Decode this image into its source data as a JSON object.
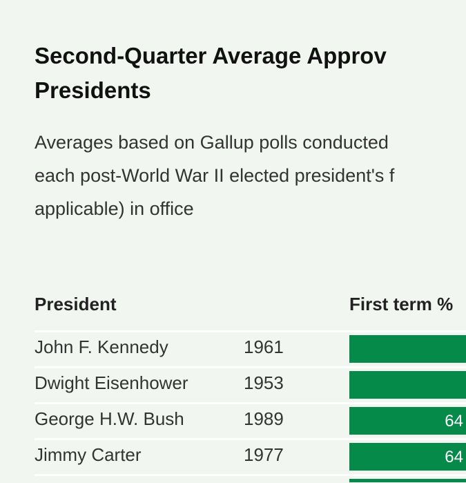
{
  "chart_data": {
    "type": "table",
    "title": "Second-Quarter Average Approv",
    "title_line2": "Presidents",
    "subtitle_lines": [
      "Averages based on Gallup polls conducted",
      "each post-World War II elected president's f",
      "applicable) in office"
    ],
    "columns": [
      "President",
      "",
      "First term %"
    ],
    "bar_color": "#068a4a",
    "rows": [
      {
        "president": "John F. Kennedy",
        "year": "1961",
        "label": ""
      },
      {
        "president": "Dwight Eisenhower",
        "year": "1953",
        "label": ""
      },
      {
        "president": "George H.W. Bush",
        "year": "1989",
        "label": "64"
      },
      {
        "president": "Jimmy Carter",
        "year": "1977",
        "label": "64"
      },
      {
        "president": "",
        "year": "",
        "label": ""
      }
    ]
  }
}
